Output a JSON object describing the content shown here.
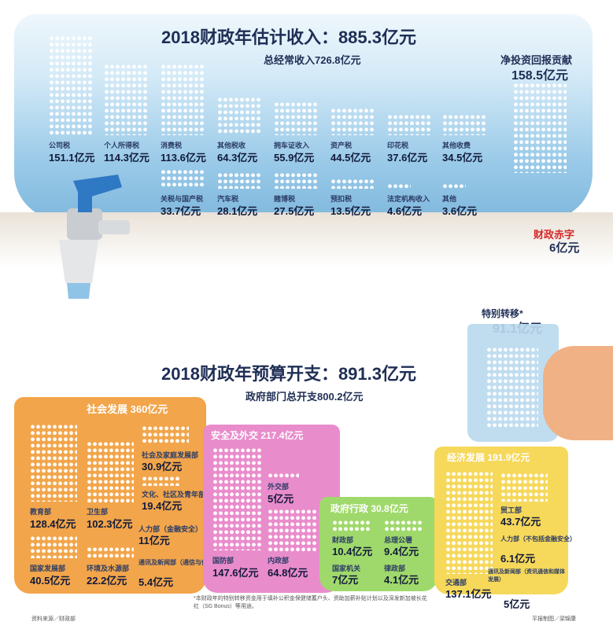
{
  "revenue": {
    "title": "2018财政年估计收入：885.3亿元",
    "operating_total": "总经常收入726.8亿元",
    "items_row1": [
      {
        "label": "公司税",
        "value": "151.1亿元"
      },
      {
        "label": "个人所得税",
        "value": "114.3亿元"
      },
      {
        "label": "消费税",
        "value": "113.6亿元"
      },
      {
        "label": "其他税收",
        "value": "64.3亿元"
      },
      {
        "label": "拥车证收入",
        "value": "55.9亿元"
      },
      {
        "label": "资产税",
        "value": "44.5亿元"
      },
      {
        "label": "印花税",
        "value": "37.6亿元"
      },
      {
        "label": "其他收费",
        "value": "34.5亿元"
      }
    ],
    "items_row2": [
      {
        "label": "关税与国产税",
        "value": "33.7亿元"
      },
      {
        "label": "汽车税",
        "value": "28.1亿元"
      },
      {
        "label": "赌博税",
        "value": "27.5亿元"
      },
      {
        "label": "预扣税",
        "value": "13.5亿元"
      },
      {
        "label": "法定机构收入",
        "value": "4.6亿元"
      },
      {
        "label": "其他",
        "value": "3.6亿元"
      }
    ],
    "nir_label": "净投资回报贡献",
    "nir_value": "158.5亿元",
    "deficit_label": "财政赤字",
    "deficit_value": "6亿元"
  },
  "expenditure": {
    "title": "2018财政年预算开支：891.3亿元",
    "ministries_total": "政府部门总开支800.2亿元",
    "special_label": "特别转移*",
    "special_value": "91.1亿元",
    "social": {
      "title": "社会发展 360亿元",
      "items": [
        {
          "label": "社会及家庭发展部",
          "value": "30.9亿元"
        },
        {
          "label": "文化、社区及青年部",
          "value": "19.4亿元"
        },
        {
          "label": "人力部（金融安全）",
          "value": "11亿元"
        },
        {
          "label": "教育部",
          "value": "128.4亿元"
        },
        {
          "label": "卫生部",
          "value": "102.3亿元"
        },
        {
          "label": "国家发展部",
          "value": "40.5亿元"
        },
        {
          "label": "环境及水源部",
          "value": "22.2亿元"
        },
        {
          "label": "通讯及新闻部（通信与信息）",
          "value": "5.4亿元"
        }
      ]
    },
    "security": {
      "title": "安全及外交 217.4亿元",
      "items": [
        {
          "label": "外交部",
          "value": "5亿元"
        },
        {
          "label": "国防部",
          "value": "147.6亿元"
        },
        {
          "label": "内政部",
          "value": "64.8亿元"
        }
      ]
    },
    "gov": {
      "title": "政府行政 30.8亿元",
      "items": [
        {
          "label": "财政部",
          "value": "10.4亿元"
        },
        {
          "label": "总理公署",
          "value": "9.4亿元"
        },
        {
          "label": "国家机关",
          "value": "7亿元"
        },
        {
          "label": "律政部",
          "value": "4.1亿元"
        }
      ]
    },
    "economic": {
      "title": "经济发展 191.9亿元",
      "items": [
        {
          "label": "贸工部",
          "value": "43.7亿元"
        },
        {
          "label": "人力部（不包括金融安全）",
          "value": "6.1亿元"
        },
        {
          "label": "交通部",
          "value": "137.1亿元"
        },
        {
          "label": "通讯及新闻部（资讯通信和媒体发展）",
          "value": "5亿元"
        }
      ]
    },
    "footnote": "*本财政年的特别转移资金用于填补公积金保健储蓄户头、资助加薪补贴计划以及深发新加坡长花红（SG Bonus）等用途。",
    "source": "资料来源／财政部",
    "credit": "平报制图／梁锦康"
  },
  "colors": {
    "water": "#8fc4e6",
    "tank": "#d7ecf8",
    "social": "#f2a54a",
    "security": "#e98ccc",
    "gov": "#9fd96b",
    "economic": "#f6d85a",
    "navy": "#1f2e55",
    "red": "#d42a2a"
  }
}
